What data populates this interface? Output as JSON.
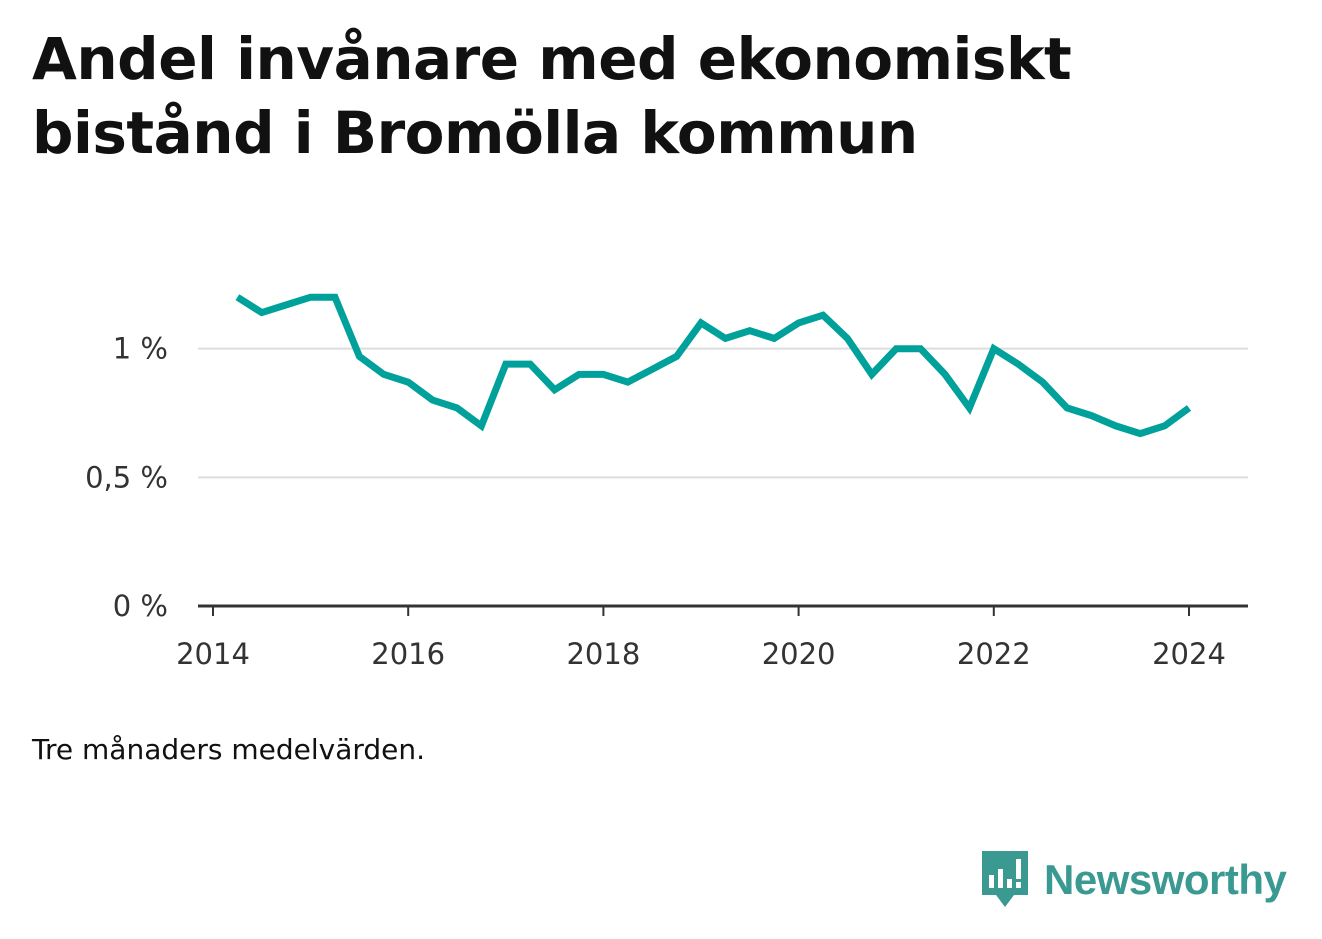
{
  "title": "Andel invånare med ekonomiskt bistånd i Bromölla kommun",
  "note": "Tre månaders medelvärden.",
  "brand": {
    "name": "Newsworthy",
    "icon": "newsworthy-logo-icon",
    "color": "#3a9a92"
  },
  "chart_data": {
    "type": "line",
    "title": "Andel invånare med ekonomiskt bistånd i Bromölla kommun",
    "xlabel": "",
    "ylabel": "",
    "line_color": "#00a19a",
    "grid": true,
    "legend": "none",
    "ylim": [
      0,
      1.5
    ],
    "xlim": [
      "2014-01-01",
      "2024-07-01"
    ],
    "y_ticks": [
      {
        "value": 0,
        "label": "0 %"
      },
      {
        "value": 0.5,
        "label": "0,5 %"
      },
      {
        "value": 1,
        "label": "1 %"
      }
    ],
    "x_ticks": [
      {
        "value": "2014-01-01",
        "label": "2014"
      },
      {
        "value": "2016-01-01",
        "label": "2016"
      },
      {
        "value": "2018-01-01",
        "label": "2018"
      },
      {
        "value": "2020-01-01",
        "label": "2020"
      },
      {
        "value": "2022-01-01",
        "label": "2022"
      },
      {
        "value": "2024-01-01",
        "label": "2024"
      }
    ],
    "series": [
      {
        "x": [
          "2014-04",
          "2014-07",
          "2014-10",
          "2015-01",
          "2015-04",
          "2015-07",
          "2015-10",
          "2016-01",
          "2016-04",
          "2016-07",
          "2016-10",
          "2017-01",
          "2017-04",
          "2017-07",
          "2017-10",
          "2018-01",
          "2018-04",
          "2018-07",
          "2018-10",
          "2019-01",
          "2019-04",
          "2019-07",
          "2019-10",
          "2020-01",
          "2020-04",
          "2020-07",
          "2020-10",
          "2021-01",
          "2021-04",
          "2021-07",
          "2021-10",
          "2022-01",
          "2022-04",
          "2022-07",
          "2022-10",
          "2023-01",
          "2023-04",
          "2023-07",
          "2023-10",
          "2024-01"
        ],
        "values": [
          1.2,
          1.14,
          1.17,
          1.2,
          1.2,
          0.97,
          0.9,
          0.87,
          0.8,
          0.77,
          0.7,
          0.94,
          0.94,
          0.84,
          0.9,
          0.9,
          0.87,
          0.92,
          0.97,
          1.1,
          1.04,
          1.07,
          1.04,
          1.1,
          1.13,
          1.04,
          0.9,
          1.0,
          1.0,
          0.9,
          0.77,
          1.0,
          0.94,
          0.87,
          0.77,
          0.74,
          0.7,
          0.67,
          0.7,
          0.77
        ]
      }
    ]
  }
}
